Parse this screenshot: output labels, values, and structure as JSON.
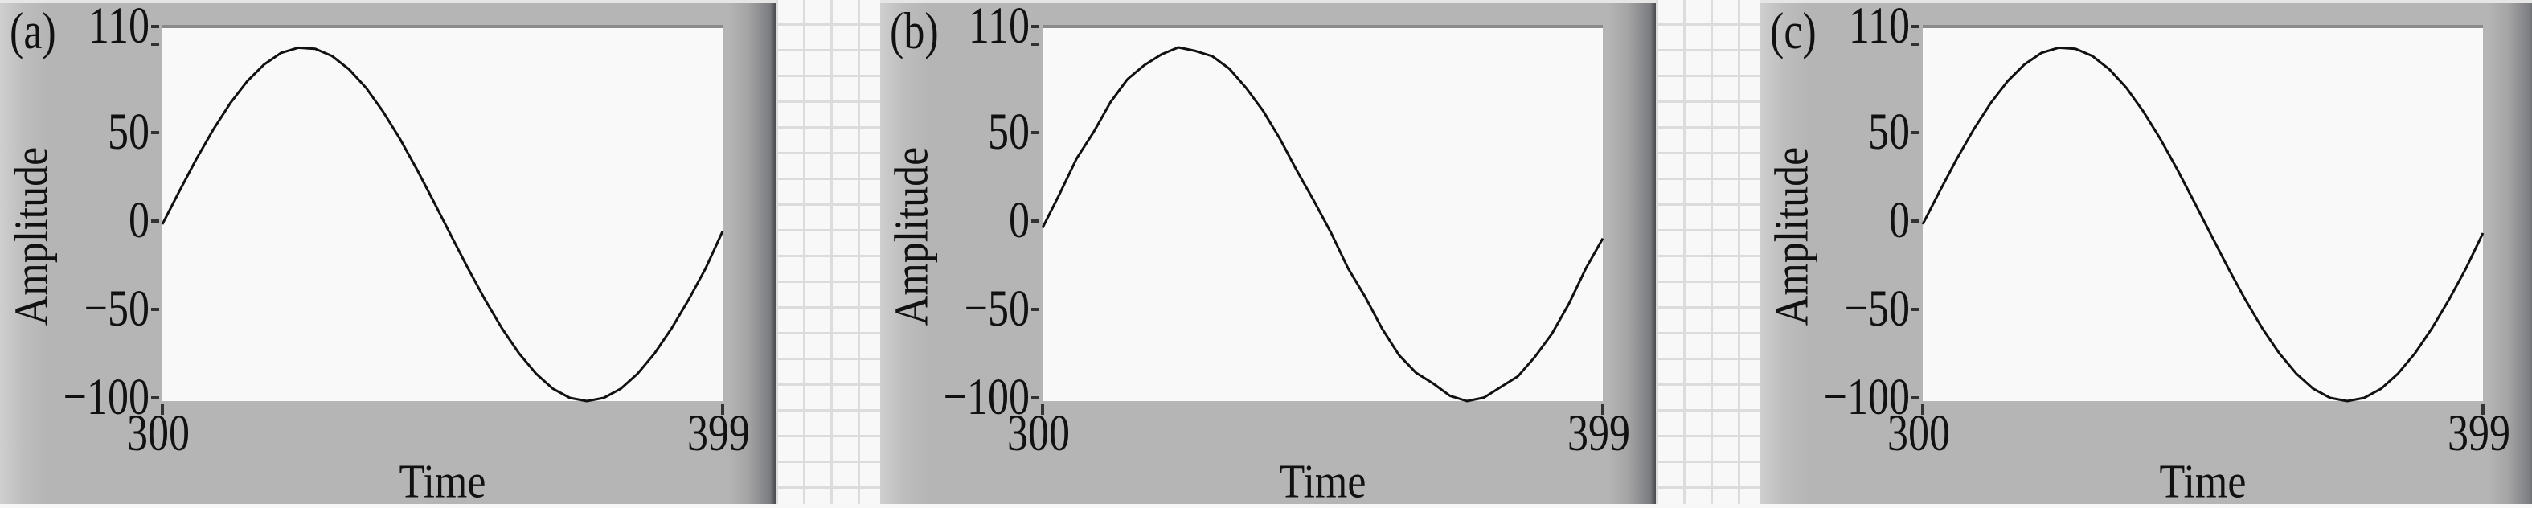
{
  "chart_data": [
    {
      "type": "line",
      "panel_label": "(a)",
      "xlabel": "Time",
      "ylabel": "Amplitude",
      "xlim": [
        300,
        399
      ],
      "ylim": [
        -100,
        110
      ],
      "xticks": [
        "300",
        "399"
      ],
      "yticks": [
        "110",
        "50",
        "0",
        "−50",
        "−100"
      ],
      "ytick_values": [
        110,
        100,
        50,
        0,
        -50,
        -100
      ],
      "grid": false,
      "line_color": "#111111",
      "x": [
        300,
        303,
        306,
        309,
        312,
        315,
        318,
        321,
        324,
        327,
        330,
        333,
        336,
        339,
        342,
        345,
        348,
        351,
        354,
        357,
        360,
        363,
        366,
        369,
        372,
        375,
        378,
        381,
        384,
        387,
        390,
        393,
        396,
        399
      ],
      "y": [
        0,
        18.7,
        36.8,
        53.6,
        68.5,
        80.9,
        90.4,
        96.9,
        99.8,
        99.2,
        95.1,
        87.6,
        77.1,
        63.7,
        48.2,
        30.9,
        12.5,
        -6.3,
        -24.9,
        -42.6,
        -58.8,
        -72.9,
        -84.4,
        -93.0,
        -98.2,
        -100,
        -98.2,
        -93.0,
        -84.4,
        -72.9,
        -58.8,
        -42.6,
        -24.9,
        -4
      ]
    },
    {
      "type": "line",
      "panel_label": "(b)",
      "xlabel": "Time",
      "ylabel": "Amplitude",
      "xlim": [
        300,
        399
      ],
      "ylim": [
        -100,
        110
      ],
      "xticks": [
        "300",
        "399"
      ],
      "yticks": [
        "110",
        "50",
        "0",
        "−50",
        "−100"
      ],
      "ytick_values": [
        110,
        100,
        50,
        0,
        -50,
        -100
      ],
      "grid": false,
      "line_color": "#111111",
      "x": [
        300,
        303,
        306,
        309,
        312,
        315,
        318,
        321,
        324,
        327,
        330,
        333,
        336,
        339,
        342,
        345,
        348,
        351,
        354,
        357,
        360,
        363,
        366,
        369,
        372,
        375,
        378,
        381,
        384,
        387,
        390,
        393,
        396,
        399
      ],
      "y": [
        -2,
        17,
        37,
        52,
        69,
        82,
        90,
        96,
        100,
        98,
        95,
        88,
        77,
        64,
        48,
        30,
        13,
        -5,
        -25,
        -41,
        -59,
        -74,
        -84,
        -90,
        -97,
        -100,
        -98,
        -92,
        -86,
        -75,
        -62,
        -45,
        -25,
        -8
      ]
    },
    {
      "type": "line",
      "panel_label": "(c)",
      "xlabel": "Time",
      "ylabel": "Amplitude",
      "xlim": [
        300,
        399
      ],
      "ylim": [
        -100,
        110
      ],
      "xticks": [
        "300",
        "399"
      ],
      "yticks": [
        "110",
        "50",
        "0",
        "−50",
        "−100"
      ],
      "ytick_values": [
        110,
        100,
        50,
        0,
        -50,
        -100
      ],
      "grid": false,
      "line_color": "#111111",
      "x": [
        300,
        303,
        306,
        309,
        312,
        315,
        318,
        321,
        324,
        327,
        330,
        333,
        336,
        339,
        342,
        345,
        348,
        351,
        354,
        357,
        360,
        363,
        366,
        369,
        372,
        375,
        378,
        381,
        384,
        387,
        390,
        393,
        396,
        399
      ],
      "y": [
        0,
        18.7,
        36.8,
        53.6,
        68.5,
        80.9,
        90.4,
        96.9,
        99.8,
        99.2,
        95.1,
        87.6,
        77.1,
        63.7,
        48.2,
        30.9,
        12.5,
        -6.3,
        -24.9,
        -42.6,
        -58.8,
        -72.9,
        -84.4,
        -93.0,
        -98.2,
        -100,
        -98.2,
        -93.0,
        -84.4,
        -72.9,
        -58.8,
        -42.6,
        -24.9,
        -5
      ]
    }
  ]
}
